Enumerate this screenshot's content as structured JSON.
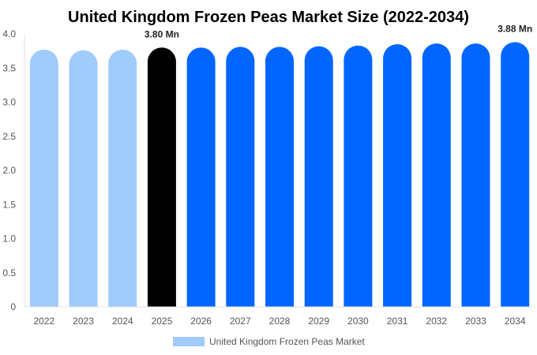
{
  "chart_data": {
    "type": "bar",
    "title": "United Kingdom Frozen Peas Market Size (2022-2034)",
    "xlabel": "",
    "ylabel": "",
    "categories": [
      "2022",
      "2023",
      "2024",
      "2025",
      "2026",
      "2027",
      "2028",
      "2029",
      "2030",
      "2031",
      "2032",
      "2033",
      "2034"
    ],
    "series": [
      {
        "name": "United Kingdom Frozen Peas Market",
        "values": [
          3.77,
          3.76,
          3.77,
          3.8,
          3.8,
          3.81,
          3.81,
          3.82,
          3.83,
          3.85,
          3.86,
          3.86,
          3.88
        ]
      }
    ],
    "ylim": [
      0,
      4.0
    ],
    "yticks": [
      {
        "value": 0,
        "label": "0"
      },
      {
        "value": 0.5,
        "label": "0.5"
      },
      {
        "value": 1.0,
        "label": "1.0"
      },
      {
        "value": 1.5,
        "label": "1.5"
      },
      {
        "value": 2.0,
        "label": "2.0"
      },
      {
        "value": 2.5,
        "label": "2.5"
      },
      {
        "value": 3.0,
        "label": "3.0"
      },
      {
        "value": 3.5,
        "label": "3.5"
      },
      {
        "value": 4.0,
        "label": "4.0"
      }
    ],
    "bar_colors": {
      "historical": "#a0cbfb",
      "current": "#000000",
      "forecast": "#0066ff"
    },
    "bar_groups": [
      "historical",
      "historical",
      "historical",
      "current",
      "forecast",
      "forecast",
      "forecast",
      "forecast",
      "forecast",
      "forecast",
      "forecast",
      "forecast",
      "forecast"
    ],
    "annotations": [
      {
        "category": "2025",
        "text": "3.80 Mn"
      },
      {
        "category": "2034",
        "text": "3.88 Mn"
      }
    ],
    "grid": false,
    "legend": {
      "position": "bottom",
      "label": "United Kingdom Frozen Peas Market",
      "color": "#a0cbfb"
    }
  }
}
